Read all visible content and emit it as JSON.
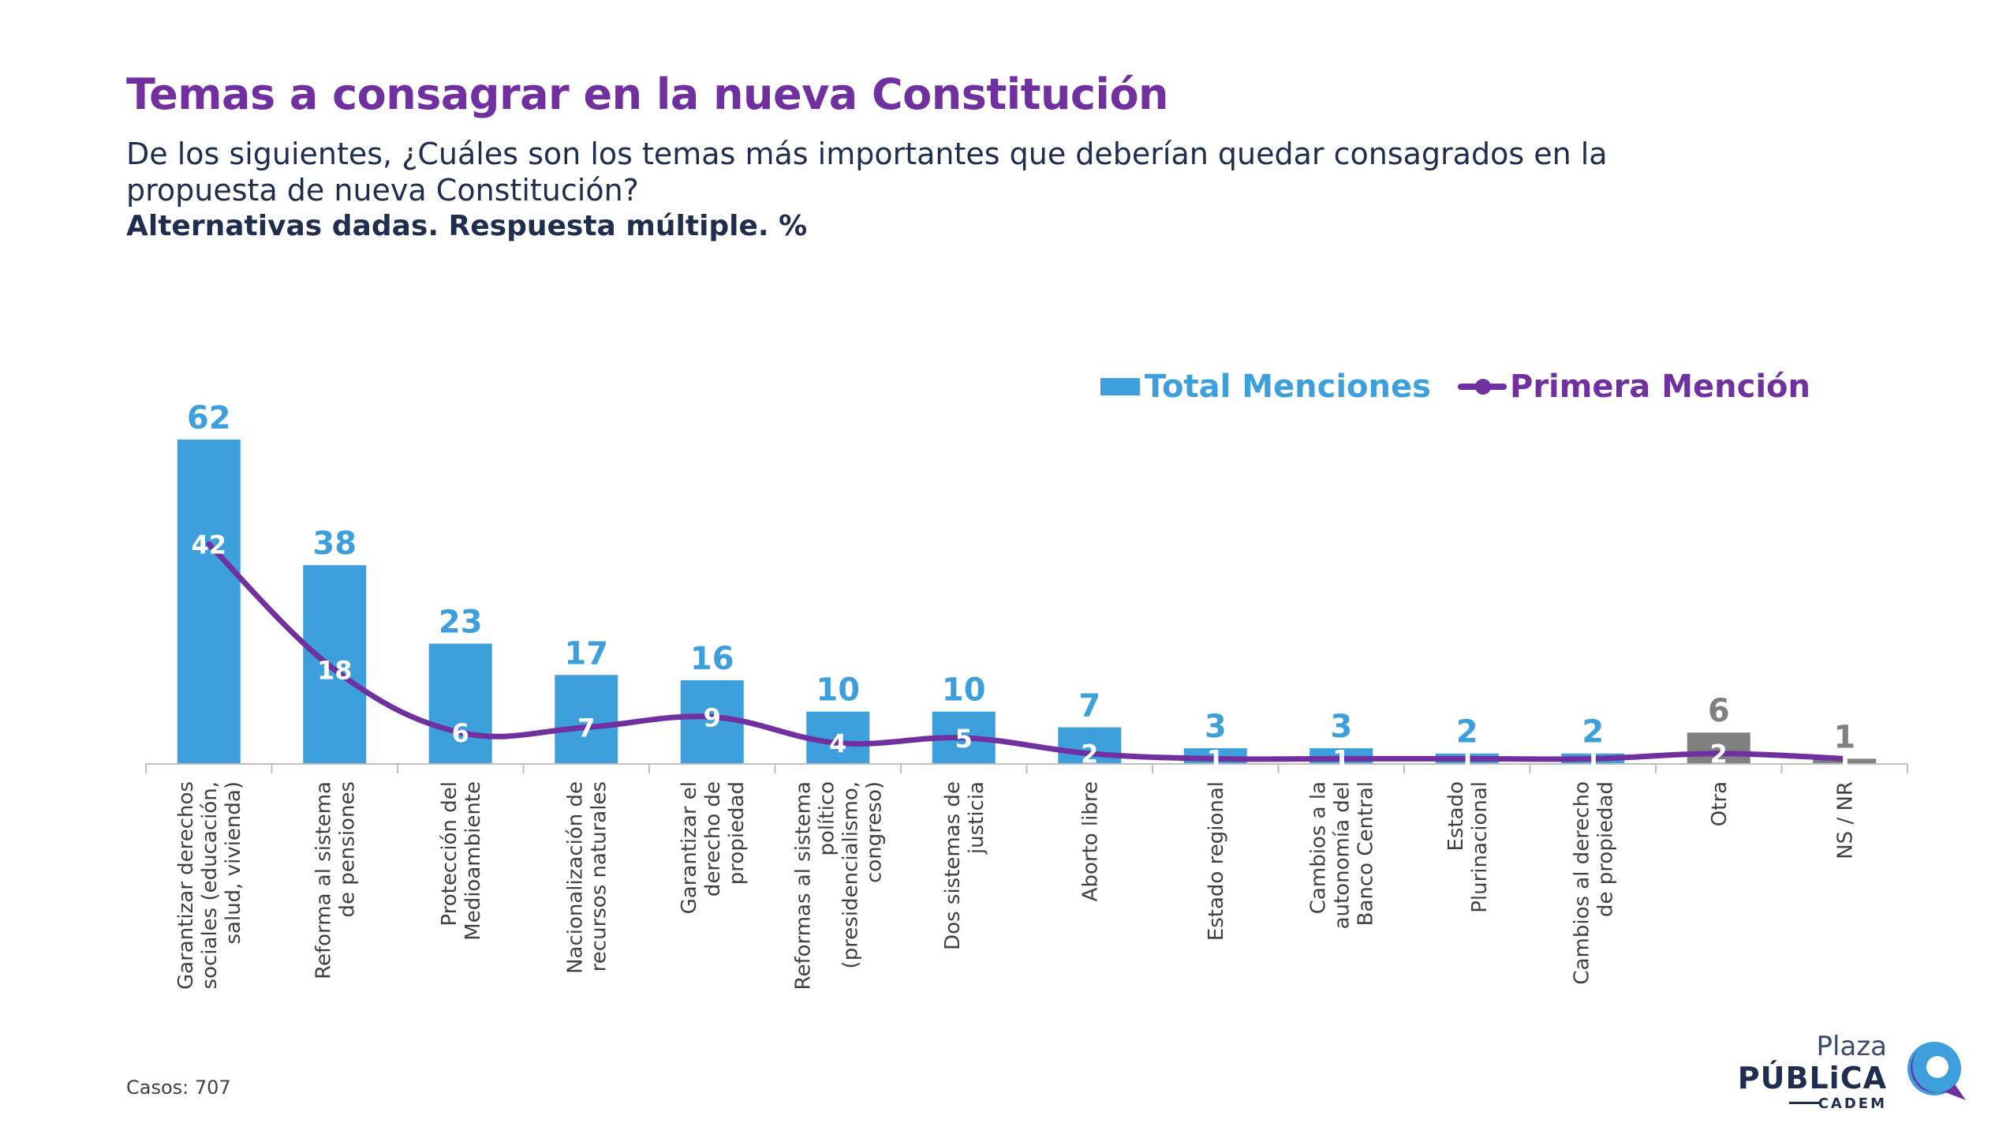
{
  "header": {
    "title": "Temas a consagrar en la nueva Constitución",
    "question": "De los siguientes, ¿Cuáles son los temas más importantes que deberían quedar consagrados en la propuesta de nueva Constitución?",
    "note": "Alternativas dadas. Respuesta múltiple. %"
  },
  "footer": {
    "cases": "Casos: 707"
  },
  "logo": {
    "line1": "Plaza",
    "line2": "PÚBLiCA",
    "line3": "CADEM",
    "mark_icon": "plaza-publica-logo-icon"
  },
  "colors": {
    "bar": "#3d9fdc",
    "bar_other": "#808080",
    "line": "#7030a0",
    "title": "#7030a0",
    "text": "#1f2d4e"
  },
  "chart_data": {
    "type": "bar",
    "categories": [
      "Garantizar derechos sociales (educación, salud, vivienda)",
      "Reforma al sistema de pensiones",
      "Protección del Medioambiente",
      "Nacionalización de recursos naturales",
      "Garantizar el derecho de propiedad",
      "Reformas al sistema político (presidencialismo, congreso)",
      "Dos sistemas de justicia",
      "Aborto libre",
      "Estado regional",
      "Cambios a la autonomía del Banco Central",
      "Estado Plurinacional",
      "Cambios al derecho de propiedad",
      "Otra",
      "NS / NR"
    ],
    "category_lines": [
      [
        "Garantizar derechos",
        "sociales (educación,",
        "salud, vivienda)"
      ],
      [
        "Reforma al sistema",
        "de pensiones"
      ],
      [
        "Protección del",
        "Medioambiente"
      ],
      [
        "Nacionalización de",
        "recursos naturales"
      ],
      [
        "Garantizar el",
        "derecho de",
        "propiedad"
      ],
      [
        "Reformas al sistema",
        "político",
        "(presidencialismo,",
        "congreso)"
      ],
      [
        "Dos sistemas de",
        "justicia"
      ],
      [
        "Aborto libre"
      ],
      [
        "Estado regional"
      ],
      [
        "Cambios a la",
        "autonomía del",
        "Banco Central"
      ],
      [
        "Estado",
        "Plurinacional"
      ],
      [
        "Cambios al derecho",
        "de propiedad"
      ],
      [
        "Otra"
      ],
      [
        "NS / NR"
      ]
    ],
    "series": [
      {
        "name": "Total Menciones",
        "type": "bar",
        "values": [
          62,
          38,
          23,
          17,
          16,
          10,
          10,
          7,
          3,
          3,
          2,
          2,
          6,
          1
        ],
        "gray_categories": [
          "Otra",
          "NS / NR"
        ]
      },
      {
        "name": "Primera Mención",
        "type": "line",
        "values": [
          42,
          18,
          6,
          7,
          9,
          4,
          5,
          2,
          1,
          1,
          1,
          1,
          2,
          1
        ]
      }
    ],
    "ylim": [
      0,
      70
    ],
    "legend": "top-right",
    "grid": false
  }
}
